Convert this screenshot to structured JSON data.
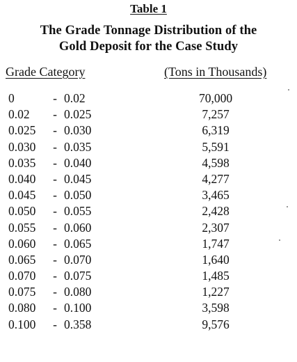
{
  "table_label": "Table 1",
  "title": {
    "line1": "The Grade Tonnage Distribution of the",
    "line2": "Gold Deposit for the Case Study"
  },
  "columns": {
    "grade": "Grade Category",
    "tons": "(Tons in Thousands)"
  },
  "rows": [
    {
      "low": "0",
      "dash": "-",
      "high": "0.02",
      "tons": "70,000"
    },
    {
      "low": "0.02",
      "dash": "-",
      "high": "0.025",
      "tons": "7,257"
    },
    {
      "low": "0.025",
      "dash": "-",
      "high": "0.030",
      "tons": "6,319"
    },
    {
      "low": "0.030",
      "dash": "-",
      "high": "0.035",
      "tons": "5,591"
    },
    {
      "low": "0.035",
      "dash": "-",
      "high": "0.040",
      "tons": "4,598"
    },
    {
      "low": "0.040",
      "dash": "-",
      "high": "0.045",
      "tons": "4,277"
    },
    {
      "low": "0.045",
      "dash": "-",
      "high": "0.050",
      "tons": "3,465"
    },
    {
      "low": "0.050",
      "dash": "-",
      "high": "0.055",
      "tons": "2,428"
    },
    {
      "low": "0.055",
      "dash": "-",
      "high": "0.060",
      "tons": "2,307"
    },
    {
      "low": "0.060",
      "dash": "-",
      "high": "0.065",
      "tons": "1,747"
    },
    {
      "low": "0.065",
      "dash": "-",
      "high": "0.070",
      "tons": "1,640"
    },
    {
      "low": "0.070",
      "dash": "-",
      "high": "0.075",
      "tons": "1,485"
    },
    {
      "low": "0.075",
      "dash": "-",
      "high": "0.080",
      "tons": "1,227"
    },
    {
      "low": "0.080",
      "dash": "-",
      "high": "0.100",
      "tons": "3,598"
    },
    {
      "low": "0.100",
      "dash": "-",
      "high": "0.358",
      "tons": "9,576"
    }
  ]
}
